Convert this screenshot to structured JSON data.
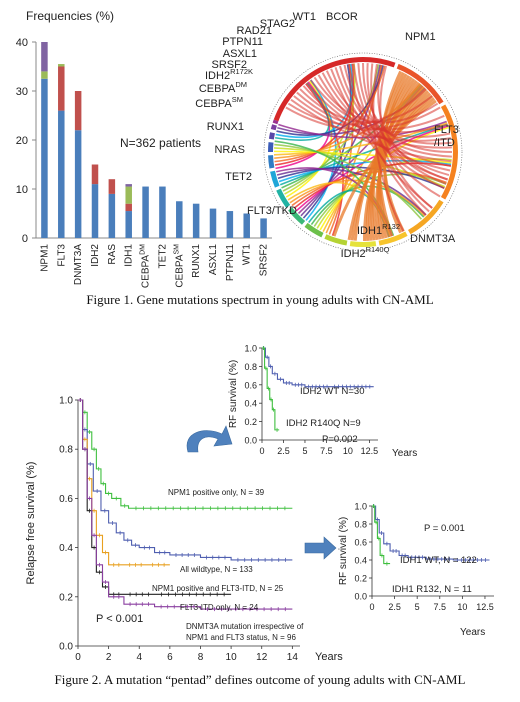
{
  "figure1": {
    "caption": "Figure 1. Gene mutations spectrum in young adults with CN-AML",
    "bar_chart": {
      "type": "bar",
      "ylabel": "Frequencies (%)",
      "ylim": [
        0,
        40
      ],
      "yticks": [
        "0",
        "10",
        "20",
        "30",
        "40"
      ],
      "categories": [
        "NPM1",
        "FLT3",
        "DNMT3A",
        "IDH2",
        "RAS",
        "IDH1",
        "CEBPA",
        "TET2",
        "CEBPA",
        "RUNX1",
        "ASXL1",
        "PTPN11",
        "WT1",
        "SRSF2"
      ],
      "category_superscripts": [
        "",
        "",
        "",
        "",
        "",
        "",
        "DM",
        "",
        "SM",
        "",
        "",
        "",
        "",
        ""
      ],
      "series": [
        {
          "color": "#4a7ebb",
          "values": [
            32.5,
            26,
            22,
            11,
            9,
            5.5,
            10.5,
            10.5,
            7.5,
            7,
            6,
            5.5,
            5,
            4
          ]
        },
        {
          "color": "#c0504d",
          "values": [
            0,
            9,
            8,
            4,
            3,
            1.5,
            0,
            0,
            0,
            0,
            0,
            0,
            0,
            0
          ]
        },
        {
          "color": "#9bbb59",
          "values": [
            1.5,
            0.5,
            0,
            0,
            0,
            3.5,
            0,
            0,
            0,
            0,
            0,
            0,
            0,
            0
          ]
        },
        {
          "color": "#8064a2",
          "values": [
            6,
            0,
            0,
            0,
            0,
            0.5,
            0,
            0,
            0,
            0,
            0,
            0,
            0,
            0
          ]
        }
      ],
      "annotation": "N=362 patients"
    },
    "circos": {
      "labels": [
        "NPM1",
        "FLT3\n/ITD",
        "DNMT3A",
        "IDH2",
        "FLT3/TKD",
        "TET2",
        "NRAS",
        "RUNX1",
        "CEBPA",
        "CEBPA",
        "IDH2",
        "SRSF2",
        "ASXL1",
        "PTPN11",
        "RAD21",
        "STAG2",
        "WT1",
        "BCOR",
        "IDH1"
      ],
      "label_superscripts": [
        "",
        "",
        "",
        "R140Q",
        "",
        "",
        "",
        "",
        "SM",
        "DM",
        "R172K",
        "",
        "",
        "",
        "",
        "",
        "",
        "",
        "R132"
      ]
    }
  },
  "figure2": {
    "caption": "Figure 2. A mutation “pentad” defines outcome of young adults with CN-AML",
    "main_km": {
      "type": "line",
      "ylabel": "Relapse free survival (%)",
      "xlabel": "Years",
      "xticks": [
        "0",
        "2",
        "4",
        "6",
        "8",
        "10",
        "12",
        "14"
      ],
      "yticks": [
        "0.0",
        "0.2",
        "0.4",
        "0.6",
        "0.8",
        "1.0"
      ],
      "xlim": [
        0,
        14.5
      ],
      "ylim": [
        0,
        1
      ],
      "pvalue": "P < 0.001",
      "series": [
        {
          "name": "NPM1 positive only, N = 39",
          "color": "#3fbf3f",
          "x": [
            0,
            0.3,
            0.6,
            0.9,
            1.2,
            1.5,
            1.8,
            2.2,
            2.8,
            3.3,
            14
          ],
          "y": [
            1.0,
            0.95,
            0.87,
            0.8,
            0.72,
            0.66,
            0.62,
            0.6,
            0.57,
            0.56,
            0.56
          ]
        },
        {
          "name": "All wildtype, N = 133",
          "color": "#4f5fb0",
          "x": [
            0,
            0.3,
            0.6,
            1.0,
            1.5,
            2.0,
            2.5,
            3.0,
            3.5,
            4.0,
            5.0,
            6.0,
            8.0,
            10.0,
            14
          ],
          "y": [
            1.0,
            0.88,
            0.74,
            0.63,
            0.55,
            0.5,
            0.46,
            0.43,
            0.41,
            0.4,
            0.38,
            0.37,
            0.36,
            0.35,
            0.35
          ]
        },
        {
          "name": "NPM1 positive and FLT3-ITD, N = 25",
          "color": "#e8a020",
          "x": [
            0,
            0.3,
            0.6,
            0.9,
            1.2,
            1.6,
            2.0,
            3.0,
            4.5,
            6.0
          ],
          "y": [
            1.0,
            0.84,
            0.68,
            0.55,
            0.45,
            0.38,
            0.33,
            0.33,
            0.33,
            0.33
          ]
        },
        {
          "name": "FLT3-ITD only, N = 24",
          "color": "#222222",
          "x": [
            0,
            0.3,
            0.6,
            0.9,
            1.2,
            1.6,
            2.0,
            3.0,
            5.0,
            10.0
          ],
          "y": [
            1.0,
            0.8,
            0.55,
            0.4,
            0.3,
            0.24,
            0.21,
            0.21,
            0.21,
            0.21
          ]
        },
        {
          "name": "DNMT3A mutation irrespective of NPM1 and FLT3 status, N = 96",
          "color": "#8a3fa0",
          "x": [
            0,
            0.3,
            0.6,
            0.9,
            1.2,
            1.6,
            2.0,
            3.0,
            5.0,
            8.0,
            14
          ],
          "y": [
            1.0,
            0.8,
            0.6,
            0.45,
            0.33,
            0.26,
            0.2,
            0.17,
            0.16,
            0.15,
            0.15
          ]
        }
      ],
      "label_lines": {
        "npm1": "NPM1 positive only, N = 39",
        "wild": "All wildtype, N = 133",
        "npm1flt3": "NPM1 positive and FLT3-ITD, N = 25",
        "flt3": "FLT3-ITD only, N = 24",
        "dnmt3a_1": "DNMT3A mutation irrespective of",
        "dnmt3a_2": "NPM1 and FLT3 status, N =  96"
      }
    },
    "idh2_km": {
      "type": "line",
      "ylabel": "RF survival (%)",
      "xlabel": "Years",
      "xticks": [
        "0",
        "2.5",
        "5",
        "7.5",
        "10",
        "12.5"
      ],
      "yticks": [
        "0.0",
        "0.2",
        "0.4",
        "0.6",
        "0.8",
        "1.0"
      ],
      "pvalue": "P=0.002",
      "series": [
        {
          "name": "IDH2 WT N=30",
          "color": "#4f5fb0",
          "x": [
            0,
            0.4,
            0.8,
            1.2,
            1.8,
            2.5,
            3.5,
            5,
            8,
            13
          ],
          "y": [
            1.0,
            0.9,
            0.8,
            0.72,
            0.66,
            0.62,
            0.6,
            0.58,
            0.58,
            0.58
          ]
        },
        {
          "name": "IDH2 R140Q N=9",
          "color": "#3fbf3f",
          "x": [
            0,
            0.3,
            0.6,
            0.9,
            1.2,
            1.5,
            2.0
          ],
          "y": [
            1.0,
            0.78,
            0.56,
            0.44,
            0.33,
            0.11,
            0.11
          ]
        }
      ],
      "labels": {
        "wt": "IDH2 WT N=30",
        "mut": "IDH2 R140Q N=9"
      }
    },
    "idh1_km": {
      "type": "line",
      "ylabel": "RF survival (%)",
      "xlabel": "Years",
      "xticks": [
        "0",
        "2.5",
        "5",
        "7.5",
        "10",
        "12.5"
      ],
      "yticks": [
        "0.0",
        "0.2",
        "0.4",
        "0.6",
        "0.8",
        "1.0"
      ],
      "pvalue": "P = 0.001",
      "series": [
        {
          "name": "IDH1 WT, N = 122",
          "color": "#4f5fb0",
          "x": [
            0,
            0.4,
            0.8,
            1.3,
            2.0,
            3.0,
            4.0,
            6.0,
            9.0,
            13
          ],
          "y": [
            1.0,
            0.85,
            0.7,
            0.58,
            0.5,
            0.45,
            0.43,
            0.41,
            0.4,
            0.4
          ]
        },
        {
          "name": "IDH1 R132, N = 11",
          "color": "#3fbf3f",
          "x": [
            0,
            0.3,
            0.6,
            0.9,
            1.3,
            2.0
          ],
          "y": [
            1.0,
            0.82,
            0.64,
            0.45,
            0.36,
            0.36
          ]
        }
      ],
      "labels": {
        "wt": "IDH1 WT, N = 122",
        "mut": "IDH1 R132, N = 11"
      }
    }
  }
}
